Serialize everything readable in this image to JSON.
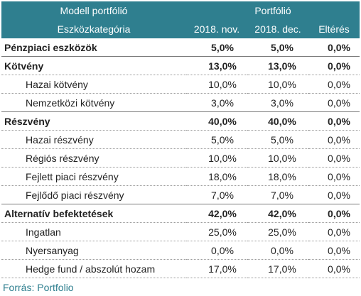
{
  "header": {
    "top_left": "Modell portfólió",
    "top_right": "Portfólió",
    "col_category": "Eszközkategória",
    "col_nov": "2018. nov.",
    "col_dec": "2018. dec.",
    "col_diff": "Eltérés"
  },
  "rows": [
    {
      "type": "group",
      "label": "Pénzpiaci eszközök",
      "nov": "5,0%",
      "dec": "5,0%",
      "diff": "0,0%"
    },
    {
      "type": "group",
      "label": "Kötvény",
      "nov": "13,0%",
      "dec": "13,0%",
      "diff": "0,0%"
    },
    {
      "type": "sub",
      "label": "Hazai kötvény",
      "nov": "10,0%",
      "dec": "10,0%",
      "diff": "0,0%"
    },
    {
      "type": "sub",
      "label": "Nemzetközi kötvény",
      "nov": "3,0%",
      "dec": "3,0%",
      "diff": "0,0%"
    },
    {
      "type": "group",
      "label": "Részvény",
      "nov": "40,0%",
      "dec": "40,0%",
      "diff": "0,0%"
    },
    {
      "type": "sub",
      "label": "Hazai részvény",
      "nov": "5,0%",
      "dec": "5,0%",
      "diff": "0,0%"
    },
    {
      "type": "sub",
      "label": "Régiós részvény",
      "nov": "10,0%",
      "dec": "10,0%",
      "diff": "0,0%"
    },
    {
      "type": "sub",
      "label": "Fejlett piaci részvény",
      "nov": "18,0%",
      "dec": "18,0%",
      "diff": "0,0%"
    },
    {
      "type": "sub",
      "label": "Fejlődő piaci részvény",
      "nov": "7,0%",
      "dec": "7,0%",
      "diff": "0,0%"
    },
    {
      "type": "group",
      "label": "Alternatív befektetések",
      "nov": "42,0%",
      "dec": "42,0%",
      "diff": "0,0%"
    },
    {
      "type": "sub",
      "label": "Ingatlan",
      "nov": "25,0%",
      "dec": "25,0%",
      "diff": "0,0%"
    },
    {
      "type": "sub",
      "label": "Nyersanyag",
      "nov": "0,0%",
      "dec": "0,0%",
      "diff": "0,0%"
    },
    {
      "type": "sub",
      "label": "Hedge fund / abszolút hozam",
      "nov": "17,0%",
      "dec": "17,0%",
      "diff": "0,0%"
    }
  ],
  "source": "Forrás: Portfolio",
  "colors": {
    "header_bg": "#2f7f8f",
    "header_text": "#ffffff",
    "source_text": "#2f7f8f"
  }
}
